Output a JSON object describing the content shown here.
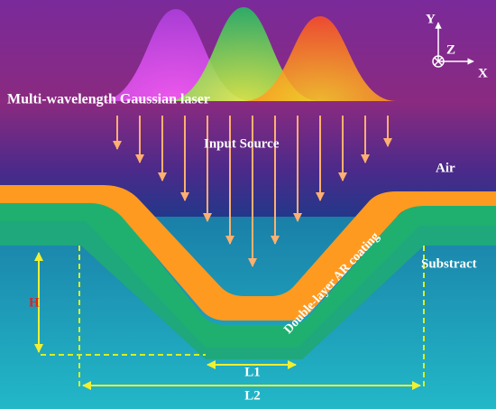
{
  "axes": {
    "y": "Y",
    "z": "Z",
    "x": "X"
  },
  "labels": {
    "laser": "Multi-wavelength Gaussian laser",
    "source": "Input Source",
    "air": "Air",
    "substrate": "Substract",
    "coating": "Double-layer AR coating"
  },
  "dimensions": {
    "height": "H",
    "l1": "L1",
    "l2": "L2"
  }
}
